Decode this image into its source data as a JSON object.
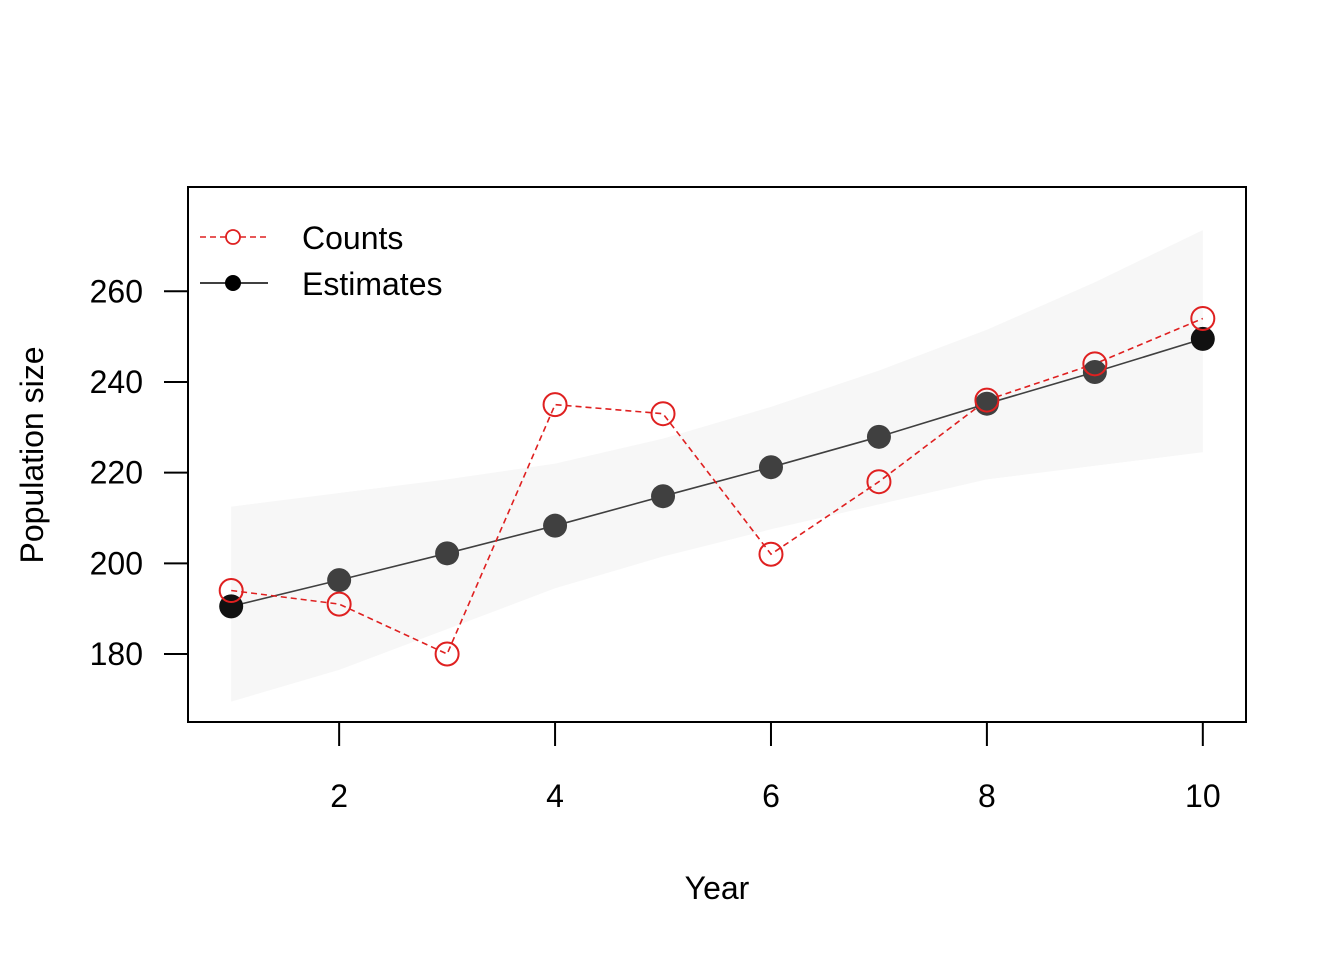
{
  "chart_data": {
    "type": "line",
    "xlabel": "Year",
    "ylabel": "Population size",
    "xlim": [
      0.6,
      10.4
    ],
    "ylim": [
      165,
      283
    ],
    "x_ticks": [
      2,
      4,
      6,
      8,
      10
    ],
    "y_ticks": [
      180,
      200,
      220,
      240,
      260
    ],
    "x": [
      1,
      2,
      3,
      4,
      5,
      6,
      7,
      8,
      9,
      10
    ],
    "series": [
      {
        "name": "Counts",
        "values": [
          194,
          191,
          180,
          235,
          233,
          202,
          218,
          236,
          244,
          254
        ],
        "color": "#DF2020",
        "line_style": "dashed",
        "marker": "open-circle"
      },
      {
        "name": "Estimates",
        "values": [
          190.5,
          196.3,
          202.2,
          208.3,
          214.8,
          221.2,
          227.9,
          235.2,
          242.2,
          249.5
        ],
        "color": "#404040",
        "line_style": "solid",
        "marker": "filled-circle"
      }
    ],
    "credible_interval": {
      "lower": [
        169.5,
        176.5,
        185.5,
        194.5,
        201.5,
        207.5,
        213,
        218.5,
        221.5,
        224.5
      ],
      "upper": [
        212.5,
        215.5,
        218.5,
        222,
        227.5,
        234.5,
        242.5,
        251.5,
        262,
        273.5
      ],
      "color": "#F7F7F7"
    },
    "legend_position": "top-left",
    "grid": false
  }
}
